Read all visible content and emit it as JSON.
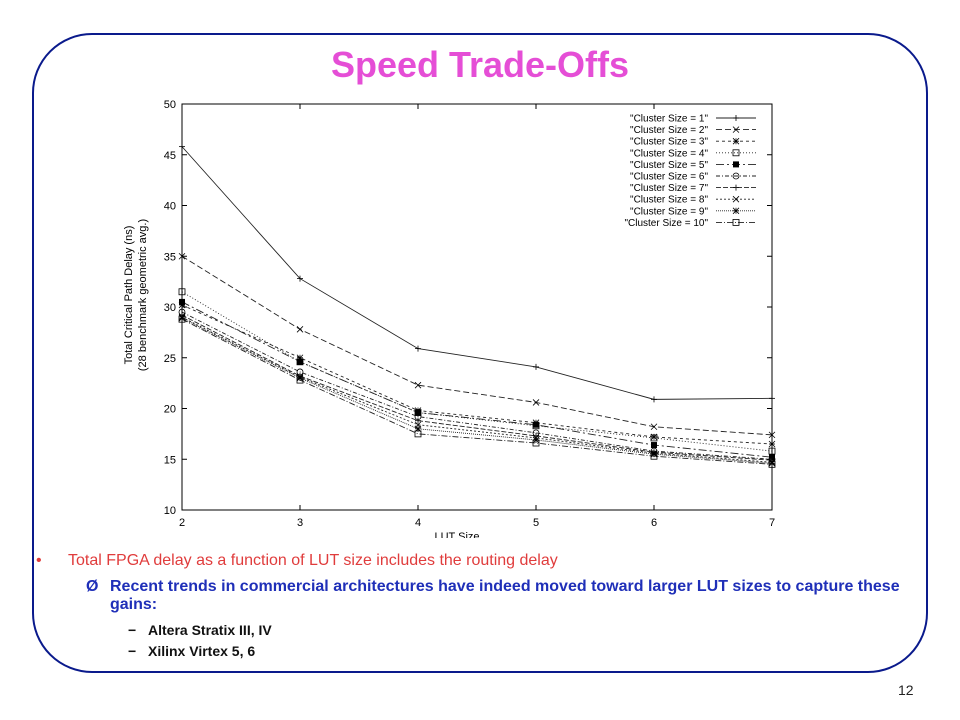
{
  "slide": {
    "title": "Speed Trade-Offs",
    "bullet_main": "Total FPGA delay as a function of LUT size includes the routing delay",
    "bullet_sub": "Recent trends in commercial architectures have indeed moved toward larger LUT sizes to capture these gains:",
    "items": [
      "Altera Stratix III, IV",
      "Xilinx Virtex 5, 6"
    ],
    "page_number": "12",
    "bullet_glyph": "•",
    "arrow_glyph": "Ø",
    "dash_glyph": "−"
  },
  "colors": {
    "title": "#e54ed6",
    "frame": "#0a1a8c",
    "bullet_main": "#e03c3c",
    "bullet_sub": "#1f2fb8"
  },
  "chart_data": {
    "type": "line",
    "xlabel": "LUT Size",
    "ylabel": [
      "Total Critical Path Delay (ns)",
      "(28 benchmark geometric avg.)"
    ],
    "x": [
      2,
      3,
      4,
      5,
      6,
      7
    ],
    "xlim": [
      2,
      7
    ],
    "ylim": [
      10,
      50
    ],
    "yticks": [
      10,
      15,
      20,
      25,
      30,
      35,
      40,
      45,
      50
    ],
    "legend_position": "top-right",
    "grid": false,
    "series": [
      {
        "name": "\"Cluster Size = 1\"",
        "marker": "plus",
        "dash": "",
        "values": [
          45.8,
          32.8,
          25.9,
          24.1,
          20.9,
          21.0
        ]
      },
      {
        "name": "\"Cluster Size = 2\"",
        "marker": "x",
        "dash": "6,3",
        "values": [
          35.0,
          27.8,
          22.3,
          20.6,
          18.2,
          17.4
        ]
      },
      {
        "name": "\"Cluster Size = 3\"",
        "marker": "star",
        "dash": "3,3",
        "values": [
          30.2,
          25.0,
          19.8,
          18.6,
          17.2,
          16.5
        ]
      },
      {
        "name": "\"Cluster Size = 4\"",
        "marker": "square-open",
        "dash": "1,2",
        "values": [
          31.5,
          24.6,
          19.6,
          18.3,
          17.1,
          15.8
        ]
      },
      {
        "name": "\"Cluster Size = 5\"",
        "marker": "square-filled",
        "dash": "8,3,2,3",
        "values": [
          30.5,
          24.6,
          19.6,
          18.4,
          16.4,
          15.2
        ]
      },
      {
        "name": "\"Cluster Size = 6\"",
        "marker": "circle-open",
        "dash": "4,2,1,2",
        "values": [
          29.5,
          23.6,
          19.2,
          17.6,
          15.8,
          15.0
        ]
      },
      {
        "name": "\"Cluster Size = 7\"",
        "marker": "plus",
        "dash": "5,2",
        "values": [
          29.2,
          23.2,
          18.8,
          17.3,
          15.7,
          14.9
        ]
      },
      {
        "name": "\"Cluster Size = 8\"",
        "marker": "x",
        "dash": "2,2",
        "values": [
          29.0,
          23.1,
          18.4,
          17.1,
          15.6,
          14.7
        ]
      },
      {
        "name": "\"Cluster Size = 9\"",
        "marker": "star",
        "dash": "1,1",
        "values": [
          28.9,
          23.0,
          18.0,
          16.9,
          15.5,
          14.6
        ]
      },
      {
        "name": "\"Cluster Size = 10\"",
        "marker": "square-open",
        "dash": "6,2,1,2",
        "values": [
          28.8,
          22.8,
          17.5,
          16.6,
          15.3,
          14.5
        ]
      }
    ]
  }
}
